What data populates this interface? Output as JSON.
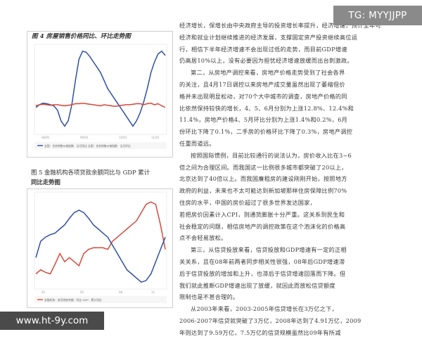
{
  "figure4": {
    "title": "图 4  房屋销售价格同比、环比走势图",
    "legend": "全国：住房销售价格指数：当月同比        全国：住房销售价格指数：当月环比",
    "chart_data": {
      "type": "line",
      "series": [
        {
          "values": [
            -0.05,
            0.0,
            0.03,
            0.02,
            0.0,
            -0.02,
            -0.1,
            -0.3,
            -0.4,
            -0.3,
            0.0,
            0.45,
            0.85,
            1.0,
            0.98,
            0.9,
            0.8,
            0.7,
            0.6,
            0.45,
            0.3,
            0.2,
            0.1,
            0.0,
            -0.1,
            -0.2,
            -0.3,
            -0.4,
            -0.3,
            -0.15,
            0.05,
            0.3,
            0.6,
            0.8,
            0.95,
            1.0,
            0.92
          ]
        },
        {
          "values": [
            -0.02,
            0.0,
            0.01,
            0.0,
            -0.01,
            0.0,
            0.0,
            -0.01,
            -0.02,
            -0.01,
            0.0,
            0.02,
            0.02,
            0.03,
            0.02,
            0.01,
            0.0,
            -0.01,
            -0.02,
            0.0,
            -0.01,
            -0.02,
            -0.03,
            -0.02,
            -0.01,
            0.0,
            0.0,
            0.01,
            0.02,
            0.02,
            0.0,
            0.02,
            0.03,
            0.0,
            0.02,
            -0.02,
            -0.05
          ]
        }
      ]
    }
  },
  "figure5": {
    "title_line1": "图 5  金融机构各项贷款余额同比与 GDP 累计",
    "title_line2": "同比走势图",
    "legend": "金融机构：各项贷款余额：同比        GDP：累计同比",
    "chart_data": {
      "type": "line",
      "series": [
        {
          "values": [
            0.1,
            0.15,
            0.12,
            0.1,
            0.22,
            0.35,
            0.25,
            0.3,
            0.25,
            0.2,
            0.35,
            0.4,
            0.42,
            0.42,
            0.42,
            0.4,
            0.5,
            0.55,
            0.6,
            0.65,
            0.7,
            0.75,
            0.85,
            0.95,
            0.98,
            0.95,
            0.7,
            0.4
          ]
        },
        {
          "values": [
            0.3,
            0.5,
            0.55,
            0.58,
            0.6,
            0.65,
            0.7,
            0.78,
            0.85,
            0.88,
            0.85,
            0.78,
            0.7,
            0.65,
            0.6,
            0.55,
            0.45,
            0.35,
            0.25,
            0.15,
            0.1,
            0.05,
            0.0,
            0.02,
            0.1,
            0.25,
            0.4,
            0.55
          ]
        }
      ]
    }
  },
  "paragraphs": [
    "经济增长，保增长由中央政府主导的投资增长率提升，经济增速，预计全年可",
    "经济和就业计划继续推进的经济发展，支撑固定资产投资继续高位运",
    "行，相信下半年经济增速不会出现过低的走势，而目前GDP增速",
    "仍高居10%以上，没有必要因为担忧经济增速放缓而出台刺激政。",
    "第二，从房地产调控来看，房地产价格走势受到了社会各界",
    "的关注，且4月17日调控以来房地产成交量虽然出现了萎缩但价",
    "格并未出现明显松动，对70个大中城市的调查，房地产价格的同",
    "比依然保持较快的增长，4、5、6月分别为上涨12.8%、12.4%和",
    "11.4%，房地产价格4、5月环比分别为上涨1.4%和0.2%，6月",
    "份环比下降了0.1%，二手房的价格环比下降了0.3%，房地产调控",
    "任重而道远。",
    "按照国际惯例，目前比较通行的说法认为，房价收入比在3~6",
    "倍之间为合理区间。而我国这一比例很多城市都突破了20以上，",
    "北京达到了40倍以上。而我国廉租房的建设刚刚开始，按照地方",
    "政府的利益，未来也不太可能达到新加坡那样住房保障比例70%",
    "住房的水平，中国的房价超过了很多世界发达国家，",
    "若把房价因素计入CPI，则通货膨胀十分严重。这关系到民生和",
    "社会稳定的问题，相信房地产的调控政策在这个泡沫化的价格高",
    "点不会轻易放松。",
    "第三，从信贷投放来看，信贷投放和GDP增速有一定的正相",
    "关关系，且在08年前两者同步相关性很强，08年后GDP增速滞",
    "后于信贷投放的增加和上升，也滞后于信贷增速回落而下降。但",
    "我们就此推断GDP增速出现了放缓，就因此而放松信贷额度",
    "限制也是不甚合理的。",
    "从2003年来看，2003-2005年信贷增长在3万亿之下，",
    "2006-2007年信贷就突破了3万亿，2008年达到了4.91万亿，2009",
    "年则达到了9.59万亿，7.5万亿的信贷规模虽然比09年有所减"
  ],
  "watermark_top": "TG: MYYJJPP",
  "watermark_bottom": "www.ht-9y.com"
}
